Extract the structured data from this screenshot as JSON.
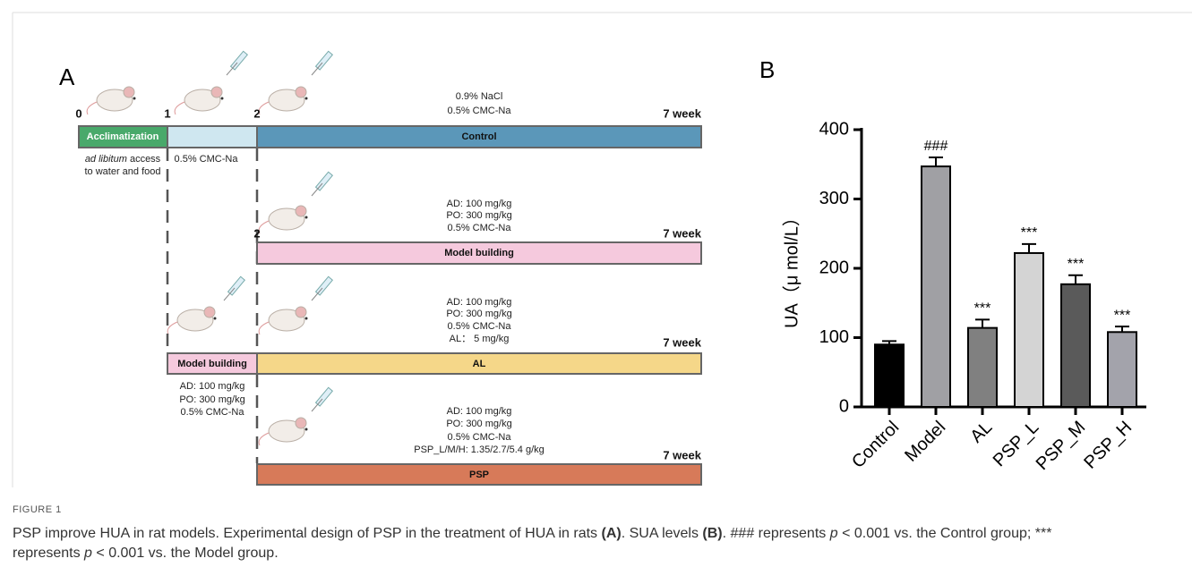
{
  "panel_a": {
    "label": "A",
    "acclimatization": {
      "start": "0",
      "end": "1",
      "bar": "Acclimatization",
      "note_italic": "ad libitum",
      "note_rest": " access",
      "note_line2": "to water and food"
    },
    "vehicle": {
      "start": "2",
      "note": "0.5% CMC-Na"
    },
    "control": {
      "end": "7 week",
      "bar": "Control",
      "treatment": [
        "0.9% NaCl",
        "0.5% CMC-Na"
      ]
    },
    "model": {
      "start": "2",
      "end": "7 week",
      "bar": "Model building",
      "treatment": [
        "AD: 100 mg/kg",
        "PO: 300 mg/kg",
        "0.5% CMC-Na"
      ]
    },
    "al": {
      "end": "7 week",
      "bar": "AL",
      "treatment": [
        "AD: 100 mg/kg",
        "PO: 300 mg/kg",
        "0.5% CMC-Na",
        "AL： 5 mg/kg"
      ]
    },
    "model_phase": {
      "bar": "Model building",
      "treatment": [
        "AD: 100 mg/kg",
        "PO: 300 mg/kg",
        "0.5% CMC-Na"
      ]
    },
    "psp": {
      "end": "7 week",
      "bar": "PSP",
      "treatment": [
        "AD: 100 mg/kg",
        "PO: 300 mg/kg",
        "0.5% CMC-Na",
        "PSP_L/M/H: 1.35/2.7/5.4 g/kg"
      ]
    }
  },
  "chart_data": {
    "type": "bar",
    "panel_label": "B",
    "y_label": "UA（μ mol/L）",
    "categories": [
      "Control",
      "Model",
      "AL",
      "PSP_L",
      "PSP_M",
      "PSP_H"
    ],
    "values": [
      90,
      347,
      114,
      222,
      177,
      108
    ],
    "errors": [
      5,
      13,
      12,
      13,
      13,
      8
    ],
    "annotations": [
      null,
      "###",
      "***",
      "***",
      "***",
      "***"
    ],
    "colors": [
      "#000000",
      "#a0a0a4",
      "#808080",
      "#d4d4d4",
      "#5a5a5a",
      "#a3a3ab"
    ],
    "ylim": [
      0,
      400
    ],
    "yticks": [
      0,
      100,
      200,
      300,
      400
    ]
  },
  "caption": {
    "head": "FIGURE 1",
    "runs": [
      {
        "text": "PSP improve HUA in rat models. Experimental design of PSP in the treatment of HUA in rats "
      },
      {
        "text": "(A)",
        "style": "bold"
      },
      {
        "text": ". SUA levels "
      },
      {
        "text": "(B)",
        "style": "bold"
      },
      {
        "text": ". ### represents "
      },
      {
        "text": "p",
        "style": "italic"
      },
      {
        "text": " < 0.001 vs. the Control group; *** represents "
      },
      {
        "text": "p",
        "style": "italic"
      },
      {
        "text": " < 0.001 vs. the Model group."
      }
    ]
  }
}
